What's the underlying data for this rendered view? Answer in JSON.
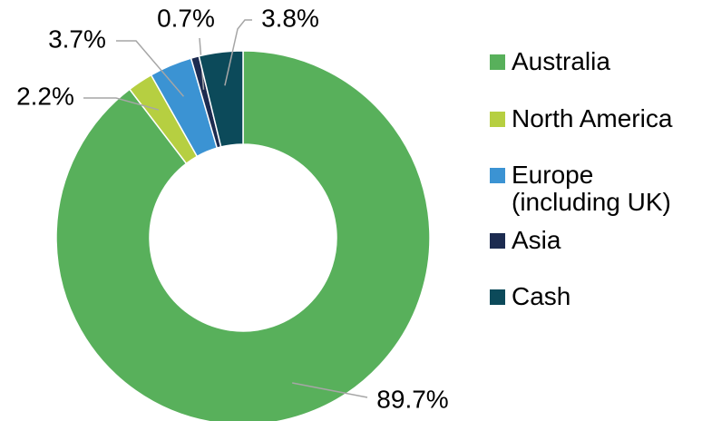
{
  "chart_data": {
    "type": "donut",
    "categories": [
      "Australia",
      "North America",
      "Europe (including UK)",
      "Asia",
      "Cash"
    ],
    "values": [
      89.7,
      2.2,
      3.7,
      0.7,
      3.8
    ],
    "value_labels": [
      "89.7%",
      "2.2%",
      "3.7%",
      "0.7%",
      "3.8%"
    ],
    "colors": [
      "#58b05b",
      "#b6cf41",
      "#3b93d3",
      "#1c2b50",
      "#0c4a5a"
    ],
    "legend": "right"
  }
}
